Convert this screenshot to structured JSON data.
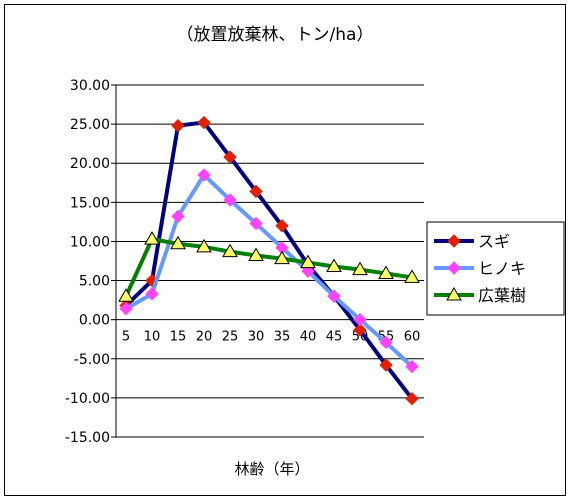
{
  "chart_data": {
    "type": "line",
    "title": "（放置放棄林、トン/ha）",
    "xlabel": "林齢（年）",
    "ylabel": "",
    "categories": [
      "5",
      "10",
      "15",
      "20",
      "25",
      "30",
      "35",
      "40",
      "45",
      "50",
      "55",
      "60"
    ],
    "ylim": [
      -15,
      30
    ],
    "yticks": [
      "30.00",
      "25.00",
      "20.00",
      "15.00",
      "10.00",
      "5.00",
      "0.00",
      "-5.00",
      "-10.00",
      "-15.00"
    ],
    "grid": true,
    "legend_position": "right",
    "series": [
      {
        "name": "スギ",
        "color": "#000080",
        "marker": "diamond",
        "marker_color": "#e02000",
        "values": [
          1.8,
          5.0,
          24.8,
          25.2,
          20.8,
          16.4,
          12.0,
          7.0,
          3.0,
          -1.3,
          -5.8,
          -10.1
        ]
      },
      {
        "name": "ヒノキ",
        "color": "#6699ff",
        "marker": "diamond",
        "marker_color": "#ff44ff",
        "values": [
          1.4,
          3.3,
          13.2,
          18.5,
          15.3,
          12.3,
          9.2,
          6.2,
          3.0,
          0.0,
          -2.9,
          -6.0
        ]
      },
      {
        "name": "広葉樹",
        "color": "#008000",
        "marker": "triangle",
        "marker_color": "#ffff66",
        "values": [
          3.0,
          10.3,
          9.7,
          9.3,
          8.7,
          8.2,
          7.8,
          7.3,
          6.8,
          6.4,
          5.9,
          5.4
        ]
      }
    ]
  }
}
